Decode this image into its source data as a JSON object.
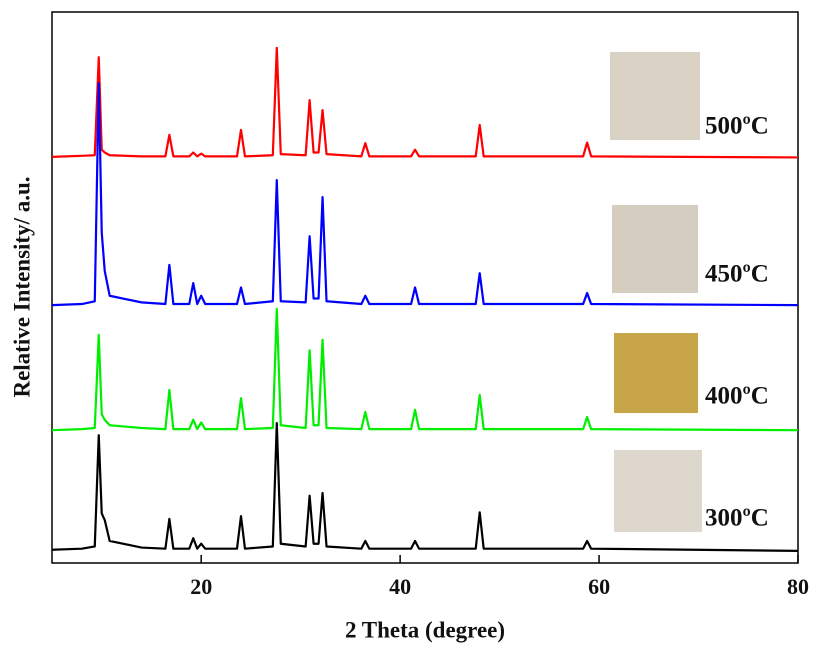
{
  "chart_data": {
    "type": "line",
    "xlabel": "2 Theta (degree)",
    "ylabel": "Relative Intensity/ a.u.",
    "xlim": [
      5,
      80
    ],
    "xticks": [
      20,
      40,
      60,
      80
    ],
    "ylim": [
      0,
      100
    ],
    "x": [
      5,
      8,
      9.3,
      9.7,
      10.0,
      10.3,
      10.8,
      14,
      16.4,
      16.8,
      17.2,
      18.8,
      19.2,
      19.6,
      20.0,
      20.4,
      23.6,
      24,
      24.4,
      27.2,
      27.6,
      28.0,
      30.5,
      30.9,
      31.3,
      31.8,
      32.2,
      32.6,
      36.1,
      36.5,
      36.9,
      41.1,
      41.5,
      41.9,
      47.6,
      48,
      48.4,
      58.4,
      58.8,
      59.2,
      80
    ],
    "series": [
      {
        "name": "500ºC",
        "color": "#ff0000",
        "values": [
          73.7,
          73.9,
          74,
          91.8,
          75,
          74.5,
          74,
          73.8,
          73.8,
          77.7,
          73.8,
          73.8,
          74.5,
          73.8,
          74.3,
          73.8,
          73.8,
          78.6,
          73.8,
          74,
          93.5,
          74.2,
          74,
          84,
          74.5,
          74.5,
          82.2,
          74.2,
          73.8,
          76.2,
          73.8,
          73.8,
          75,
          73.8,
          73.8,
          79.5,
          73.8,
          73.8,
          76.3,
          73.8,
          73.6
        ]
      },
      {
        "name": "450ºC",
        "color": "#0000ff",
        "values": [
          46.8,
          47,
          47.5,
          87.1,
          60,
          53,
          48.5,
          47.3,
          47,
          54.1,
          47,
          47,
          50.8,
          47,
          48.5,
          47,
          47,
          50,
          47,
          47.5,
          69.5,
          47.5,
          47.3,
          59.3,
          48,
          48,
          66.4,
          47.5,
          47,
          48.5,
          47,
          47,
          50,
          47,
          47,
          52.6,
          47,
          47,
          49,
          47,
          46.8
        ]
      },
      {
        "name": "400ºC",
        "color": "#00ee00",
        "values": [
          24.1,
          24.3,
          24.5,
          41.4,
          27,
          26,
          25,
          24.5,
          24.3,
          31.4,
          24.3,
          24.3,
          26,
          24.3,
          25.5,
          24.3,
          24.3,
          29.9,
          24.3,
          24.5,
          46.1,
          25,
          24.5,
          38.6,
          25,
          25,
          40.5,
          24.5,
          24.3,
          27.4,
          24.3,
          24.3,
          27.8,
          24.3,
          24.3,
          30.5,
          24.3,
          24.3,
          26.5,
          24.3,
          24.1
        ]
      },
      {
        "name": "300ºC",
        "color": "#000000",
        "values": [
          2.4,
          2.6,
          3,
          23.2,
          9,
          7.8,
          4,
          2.8,
          2.6,
          8,
          2.6,
          2.6,
          4.5,
          2.6,
          3.5,
          2.6,
          2.6,
          8.5,
          2.6,
          3,
          25.4,
          3.5,
          3,
          12.2,
          3.5,
          3.5,
          12.7,
          3,
          2.6,
          4,
          2.6,
          2.6,
          4,
          2.6,
          2.6,
          9.2,
          2.6,
          2.6,
          4,
          2.6,
          2.2
        ]
      }
    ]
  }
}
